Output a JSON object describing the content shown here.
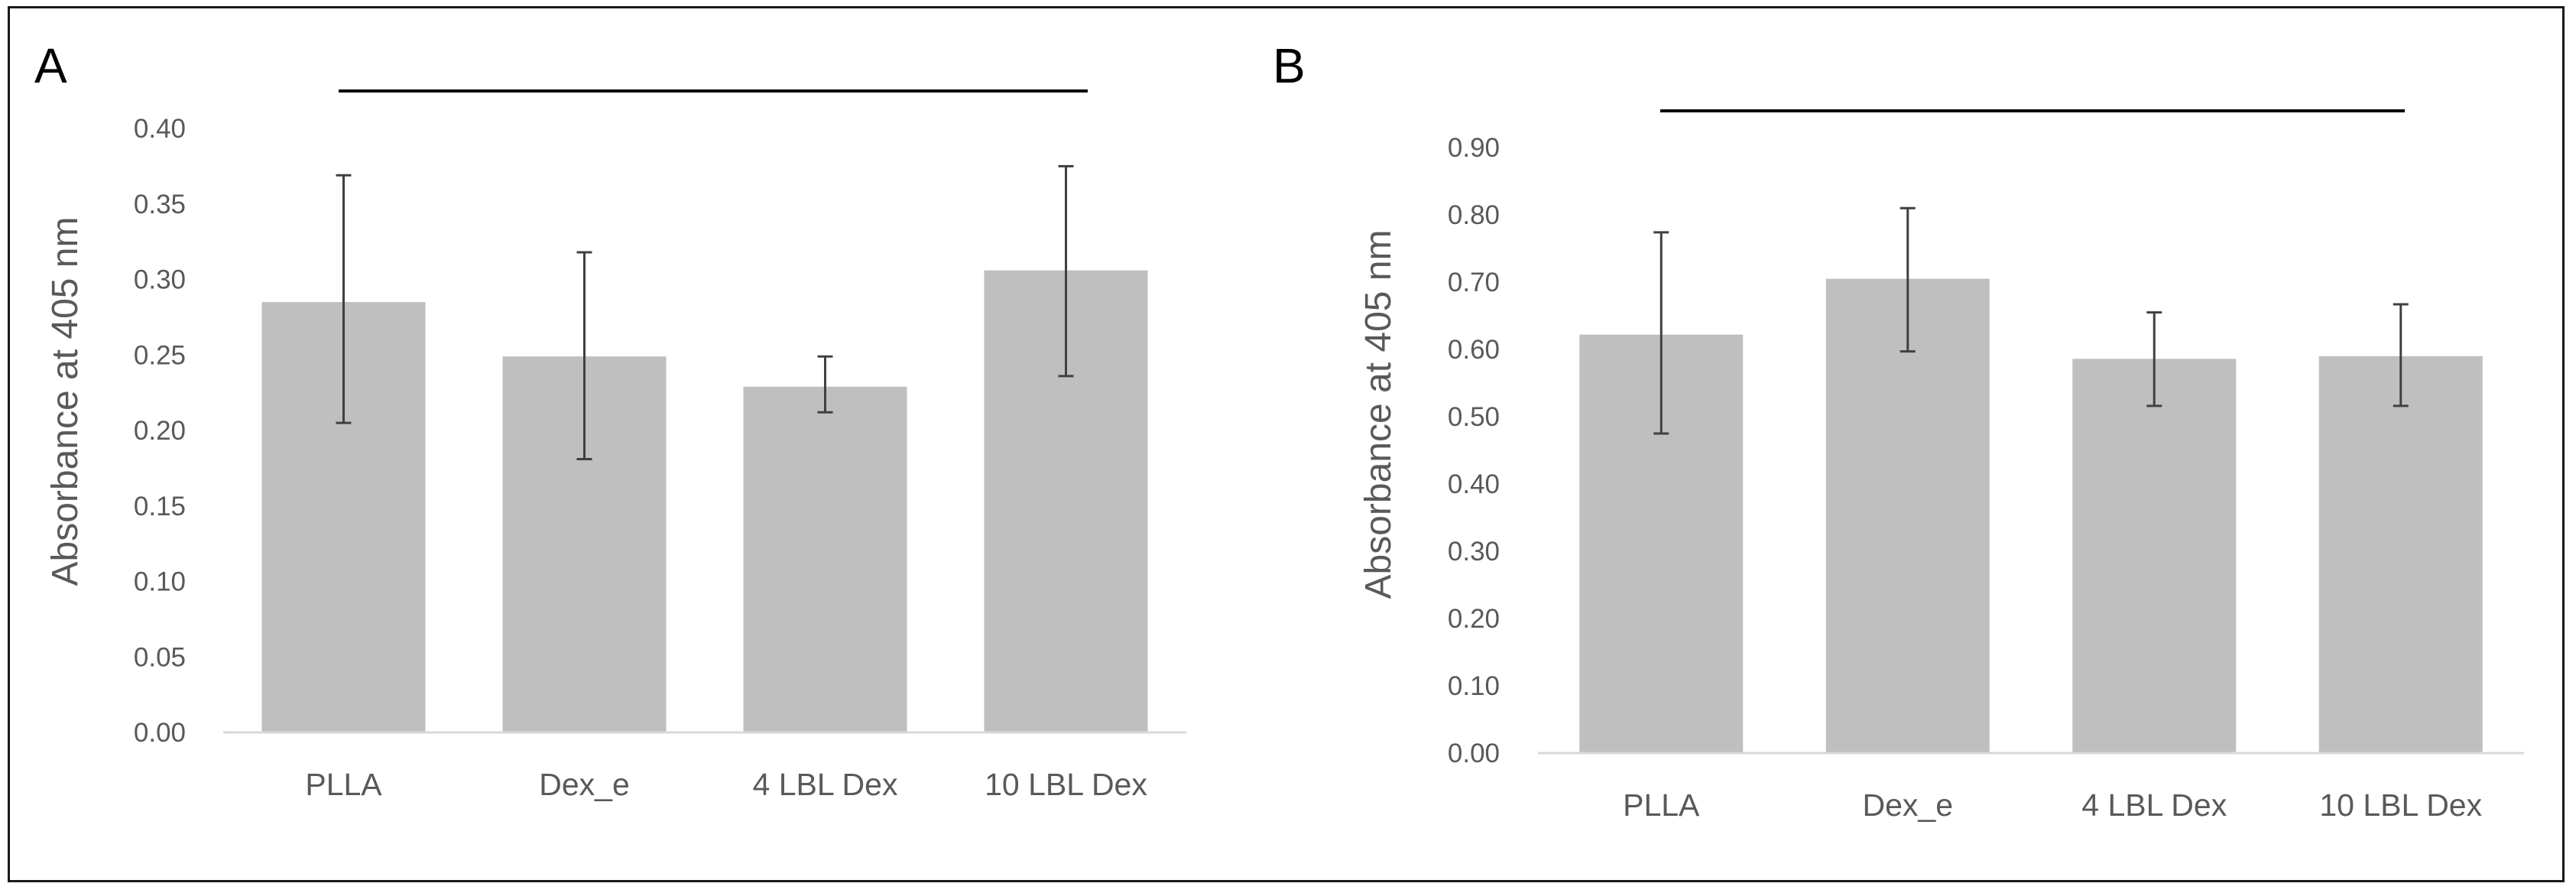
{
  "figure": {
    "colors": {
      "bar": "#bfbfbf",
      "axis": "#d9d9d9",
      "error_bar": "#404040",
      "text": "#595959",
      "frame": "#1a1a1a"
    }
  },
  "chart_data": [
    {
      "panel_label": "A",
      "type": "bar",
      "categories": [
        "PLLA",
        "Dex_e",
        "4 LBL Dex",
        "10 LBL Dex"
      ],
      "values": [
        0.285,
        0.249,
        0.229,
        0.306
      ],
      "error_low": [
        0.205,
        0.181,
        0.212,
        0.236
      ],
      "error_high": [
        0.369,
        0.318,
        0.249,
        0.375
      ],
      "ylabel": "Absorbance at 405 nm",
      "ylim": [
        0,
        0.4
      ],
      "ytick_values": [
        0,
        0.05,
        0.1,
        0.15,
        0.2,
        0.25,
        0.3,
        0.35,
        0.4
      ],
      "ytick_labels": [
        "0.00",
        "0.05",
        "0.10",
        "0.15",
        "0.20",
        "0.25",
        "0.30",
        "0.35",
        "0.40"
      ],
      "significance_bar": true
    },
    {
      "panel_label": "B",
      "type": "bar",
      "categories": [
        "PLLA",
        "Dex_e",
        "4 LBL Dex",
        "10 LBL Dex"
      ],
      "values": [
        0.622,
        0.705,
        0.586,
        0.59
      ],
      "error_low": [
        0.475,
        0.597,
        0.516,
        0.516
      ],
      "error_high": [
        0.774,
        0.81,
        0.655,
        0.667
      ],
      "ylabel": "Absorbance at 405 nm",
      "ylim": [
        0,
        0.9
      ],
      "ytick_values": [
        0,
        0.1,
        0.2,
        0.3,
        0.4,
        0.5,
        0.6,
        0.7,
        0.8,
        0.9
      ],
      "ytick_labels": [
        "0.00",
        "0.10",
        "0.20",
        "0.30",
        "0.40",
        "0.50",
        "0.60",
        "0.70",
        "0.80",
        "0.90"
      ],
      "significance_bar": true
    }
  ]
}
